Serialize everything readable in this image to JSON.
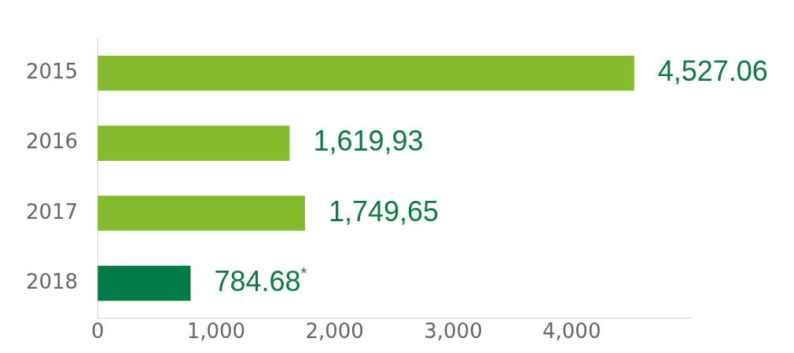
{
  "chart_data": {
    "type": "bar",
    "orientation": "horizontal",
    "categories": [
      "2015",
      "2016",
      "2017",
      "2018"
    ],
    "values": [
      4527.06,
      1619.93,
      1749.65,
      784.68
    ],
    "colors": [
      "#84bb2a",
      "#84bb2a",
      "#84bb2a",
      "#007a47"
    ],
    "value_labels": [
      "4,527.06",
      "1,619,93",
      "1,749,65",
      "784.68$^{*}$"
    ],
    "xlim": [
      0,
      5000
    ],
    "xticks": [
      0,
      {
        "value": 1000,
        "label": "1,000"
      },
      {
        "value": 2000,
        "label": "2,000"
      },
      {
        "value": 3000,
        "label": "3,000"
      },
      {
        "value": 4000,
        "label": "4,000"
      }
    ],
    "grid": false,
    "legend": false
  }
}
